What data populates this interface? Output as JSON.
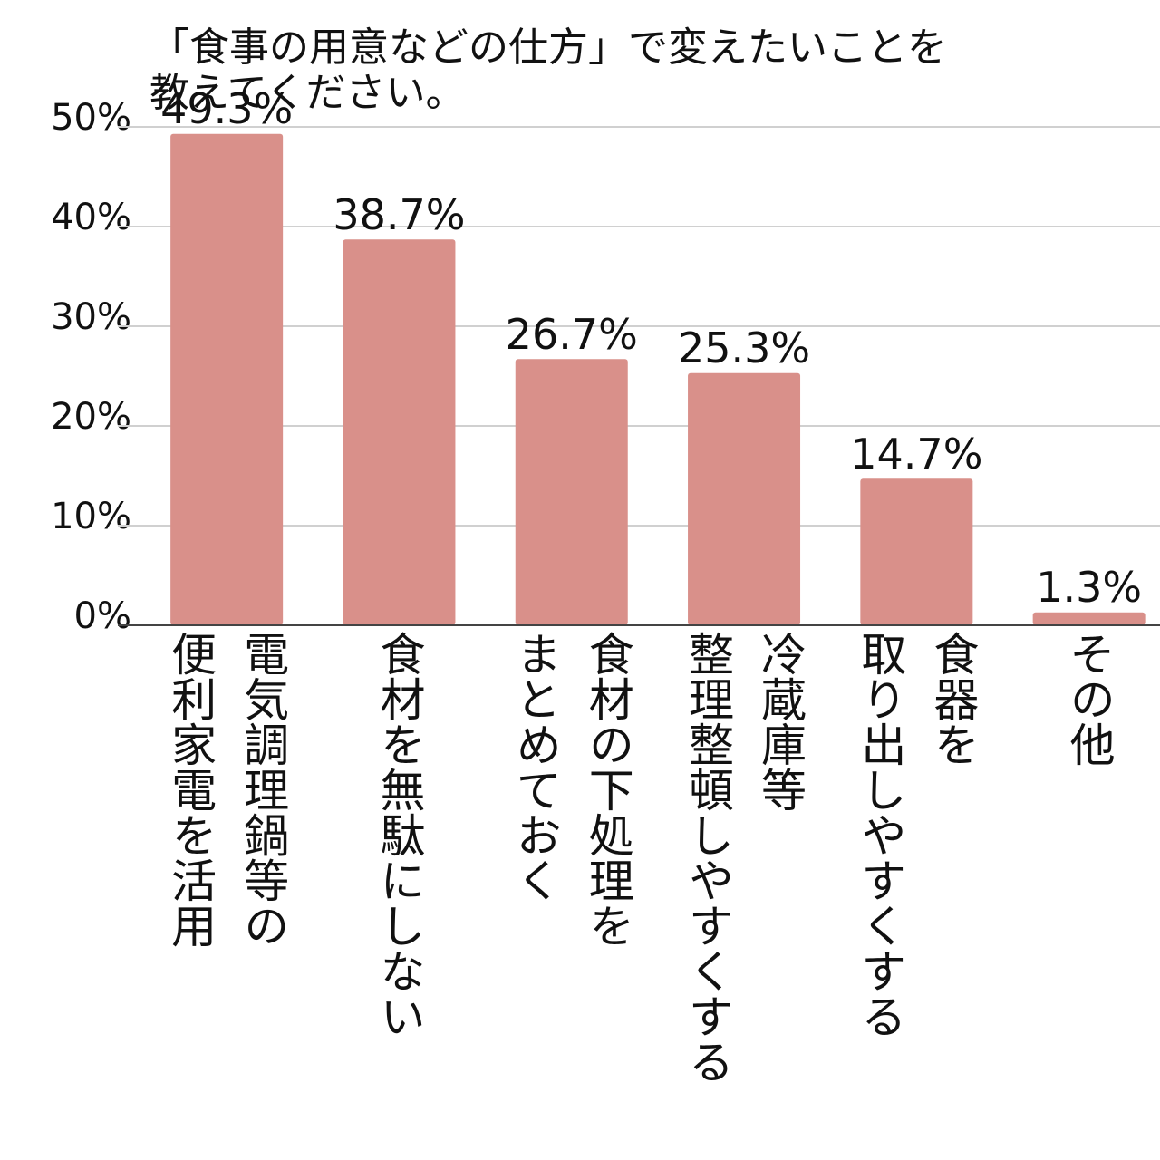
{
  "chart_data": {
    "type": "bar",
    "title": "「食事の用意などの仕方」で変えたいことを\n教えてください。",
    "categories": [
      "電気調理鍋等の\n便利家電を活用",
      "食材を無駄にしない",
      "食材の下処理を\nまとめておく",
      "冷蔵庫等\n整理整頓しやすくする",
      "食器を\n取り出しやすくする",
      "その他"
    ],
    "values": [
      49.3,
      38.7,
      26.7,
      25.3,
      14.7,
      1.3
    ],
    "value_labels": [
      "49.3%",
      "38.7%",
      "26.7%",
      "25.3%",
      "14.7%",
      "1.3%"
    ],
    "color": "#d9908a",
    "ylim": [
      0,
      50
    ],
    "yticks": [
      {
        "value": 0,
        "label": "0%"
      },
      {
        "value": 10,
        "label": "10%"
      },
      {
        "value": 20,
        "label": "20%"
      },
      {
        "value": 30,
        "label": "30%"
      },
      {
        "value": 40,
        "label": "40%"
      },
      {
        "value": 50,
        "label": "50%"
      }
    ],
    "grid": true
  }
}
